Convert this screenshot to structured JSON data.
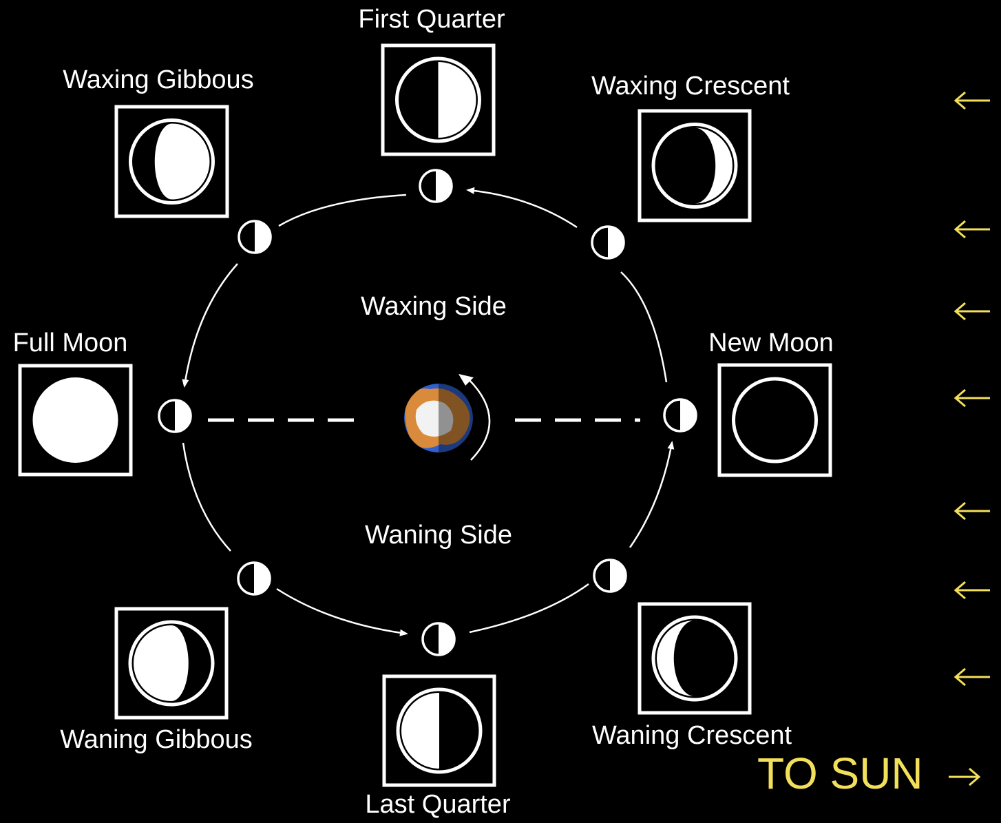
{
  "phases": [
    {
      "label": "First Quarter"
    },
    {
      "label": "Waxing Crescent"
    },
    {
      "label": "New Moon"
    },
    {
      "label": "Waning Crescent"
    },
    {
      "label": "Last Quarter"
    },
    {
      "label": "Waning Gibbous"
    },
    {
      "label": "Full Moon"
    },
    {
      "label": "Waxing Gibbous"
    }
  ],
  "sides": {
    "waxing": "Waxing Side",
    "waning": "Waning Side"
  },
  "sun_label": "TO SUN"
}
